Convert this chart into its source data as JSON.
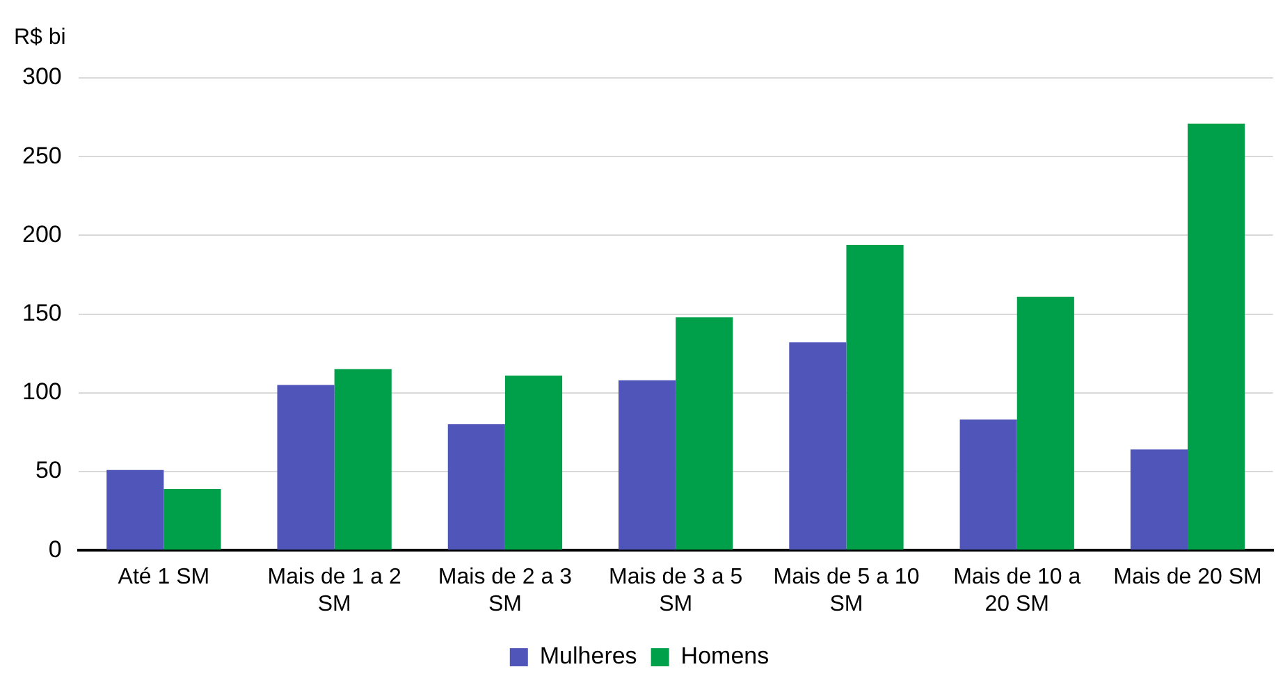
{
  "chart_data": {
    "type": "bar",
    "ylabel": "R$ bi",
    "categories": [
      "Até 1 SM",
      "Mais de 1 a 2 SM",
      "Mais de 2 a 3 SM",
      "Mais de 3 a 5 SM",
      "Mais de 5 a 10 SM",
      "Mais de 10 a 20 SM",
      "Mais de 20 SM"
    ],
    "series": [
      {
        "name": "Mulheres",
        "color": "#4f55b9",
        "values": [
          51,
          105,
          80,
          108,
          132,
          83,
          64
        ]
      },
      {
        "name": "Homens",
        "color": "#00a04b",
        "values": [
          39,
          115,
          111,
          148,
          194,
          161,
          271
        ]
      }
    ],
    "ylim": [
      0,
      300
    ],
    "yticks": [
      0,
      50,
      100,
      150,
      200,
      250,
      300
    ],
    "grid": "y",
    "legend": "bottom"
  }
}
